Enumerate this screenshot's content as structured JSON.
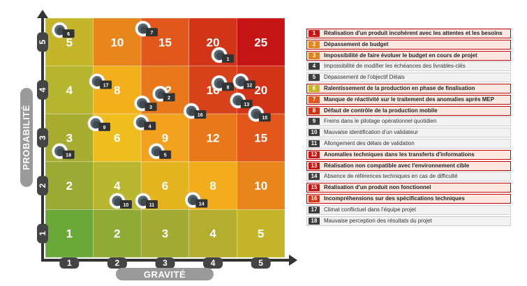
{
  "axes": {
    "x_label": "GRAVITÉ",
    "y_label": "PROBABILITÉ",
    "x_ticks": [
      "1",
      "2",
      "3",
      "4",
      "5"
    ],
    "y_ticks": [
      "1",
      "2",
      "3",
      "4",
      "5"
    ]
  },
  "grid": {
    "rows": [
      {
        "probability": 5,
        "cells": [
          {
            "score": "5",
            "color": "#c5b52a"
          },
          {
            "score": "10",
            "color": "#e9861b"
          },
          {
            "score": "15",
            "color": "#e2581c"
          },
          {
            "score": "20",
            "color": "#d23418"
          },
          {
            "score": "25",
            "color": "#c41414"
          }
        ]
      },
      {
        "probability": 4,
        "cells": [
          {
            "score": "4",
            "color": "#b6b52f"
          },
          {
            "score": "8",
            "color": "#f4b01c"
          },
          {
            "score": "12",
            "color": "#e9781b"
          },
          {
            "score": "16",
            "color": "#d7421a"
          },
          {
            "score": "20",
            "color": "#d23418"
          }
        ]
      },
      {
        "probability": 3,
        "cells": [
          {
            "score": "3",
            "color": "#a8ad31"
          },
          {
            "score": "6",
            "color": "#efbe1e"
          },
          {
            "score": "9",
            "color": "#f2a21c"
          },
          {
            "score": "12",
            "color": "#e9781b"
          },
          {
            "score": "15",
            "color": "#e2581c"
          }
        ]
      },
      {
        "probability": 2,
        "cells": [
          {
            "score": "2",
            "color": "#9aaa34"
          },
          {
            "score": "4",
            "color": "#b9b72f"
          },
          {
            "score": "6",
            "color": "#e4b41f"
          },
          {
            "score": "8",
            "color": "#f2ac1c"
          },
          {
            "score": "10",
            "color": "#e9861b"
          }
        ]
      },
      {
        "probability": 1,
        "cells": [
          {
            "score": "1",
            "color": "#6aa83a"
          },
          {
            "score": "2",
            "color": "#8fab35"
          },
          {
            "score": "3",
            "color": "#a2ab33"
          },
          {
            "score": "4",
            "color": "#b3ad30"
          },
          {
            "score": "5",
            "color": "#c5b52a"
          }
        ]
      }
    ]
  },
  "markers": [
    {
      "id": "1",
      "gravity": 4,
      "probability": 5
    },
    {
      "id": "2",
      "gravity": 3,
      "probability": 4
    },
    {
      "id": "3",
      "gravity": 3,
      "probability": 4
    },
    {
      "id": "4",
      "gravity": 3,
      "probability": 3
    },
    {
      "id": "5",
      "gravity": 3,
      "probability": 3
    },
    {
      "id": "6",
      "gravity": 1,
      "probability": 5
    },
    {
      "id": "7",
      "gravity": 3,
      "probability": 5
    },
    {
      "id": "8",
      "gravity": 4,
      "probability": 4
    },
    {
      "id": "9",
      "gravity": 2,
      "probability": 3
    },
    {
      "id": "10",
      "gravity": 2,
      "probability": 2
    },
    {
      "id": "11",
      "gravity": 3,
      "probability": 2
    },
    {
      "id": "12",
      "gravity": 5,
      "probability": 4
    },
    {
      "id": "13",
      "gravity": 5,
      "probability": 4
    },
    {
      "id": "14",
      "gravity": 4,
      "probability": 2
    },
    {
      "id": "15",
      "gravity": 5,
      "probability": 4
    },
    {
      "id": "16",
      "gravity": 4,
      "probability": 4
    },
    {
      "id": "17",
      "gravity": 2,
      "probability": 4
    },
    {
      "id": "18",
      "gravity": 1,
      "probability": 3
    }
  ],
  "legend": [
    {
      "num": "1",
      "text": "Réalisation d'un produit incohérent avec les attentes et les besoins",
      "color": "#c41414",
      "highlight": true
    },
    {
      "num": "2",
      "text": "Dépassement de budget",
      "color": "#e9861b",
      "highlight": true
    },
    {
      "num": "3",
      "text": "Impossibilité de faire évoluer le budget en cours de projet",
      "color": "#e2821b",
      "highlight": true
    },
    {
      "num": "4",
      "text": "Impossibilité de modifier les échéances des livrables-clés",
      "color": "#3d3d3d",
      "highlight": false
    },
    {
      "num": "5",
      "text": "Dépassement de l'objectif Délais",
      "color": "#3d3d3d",
      "highlight": false
    },
    {
      "num": "6",
      "text": "Ralentissement de la production en phase de finalisation",
      "color": "#c5b52a",
      "highlight": true
    },
    {
      "num": "7",
      "text": "Manque de réactivité sur le traitement des anomalies après MEP",
      "color": "#e2581c",
      "highlight": true
    },
    {
      "num": "8",
      "text": "Défaut de contrôle de la production mobile",
      "color": "#d23418",
      "highlight": true
    },
    {
      "num": "9",
      "text": "Freins dans le pilotage opérationnel quotidien",
      "color": "#3d3d3d",
      "highlight": false
    },
    {
      "num": "10",
      "text": "Mauvaise identification d'un validateur",
      "color": "#3d3d3d",
      "highlight": false
    },
    {
      "num": "11",
      "text": "Allongement des délais de validation",
      "color": "#3d3d3d",
      "highlight": false
    },
    {
      "num": "12",
      "text": "Anomalies techniques dans les transferts d'informations",
      "color": "#c41414",
      "highlight": true
    },
    {
      "num": "13",
      "text": "Réalisation non compatible avec l'environnement cible",
      "color": "#c41414",
      "highlight": true
    },
    {
      "num": "14",
      "text": "Absence de références techniques en cas de difficulté",
      "color": "#3d3d3d",
      "highlight": false
    },
    {
      "num": "15",
      "text": "Réalisation d'un produit non fonctionnel",
      "color": "#c41414",
      "highlight": true
    },
    {
      "num": "16",
      "text": "Incompréhensions sur des spécifications techniques",
      "color": "#d23418",
      "highlight": true
    },
    {
      "num": "17",
      "text": "Climat conflictuel dans l'équipe projet",
      "color": "#3d3d3d",
      "highlight": false
    },
    {
      "num": "18",
      "text": "Mauvaise perception des résultats du projet",
      "color": "#3d3d3d",
      "highlight": false
    }
  ]
}
